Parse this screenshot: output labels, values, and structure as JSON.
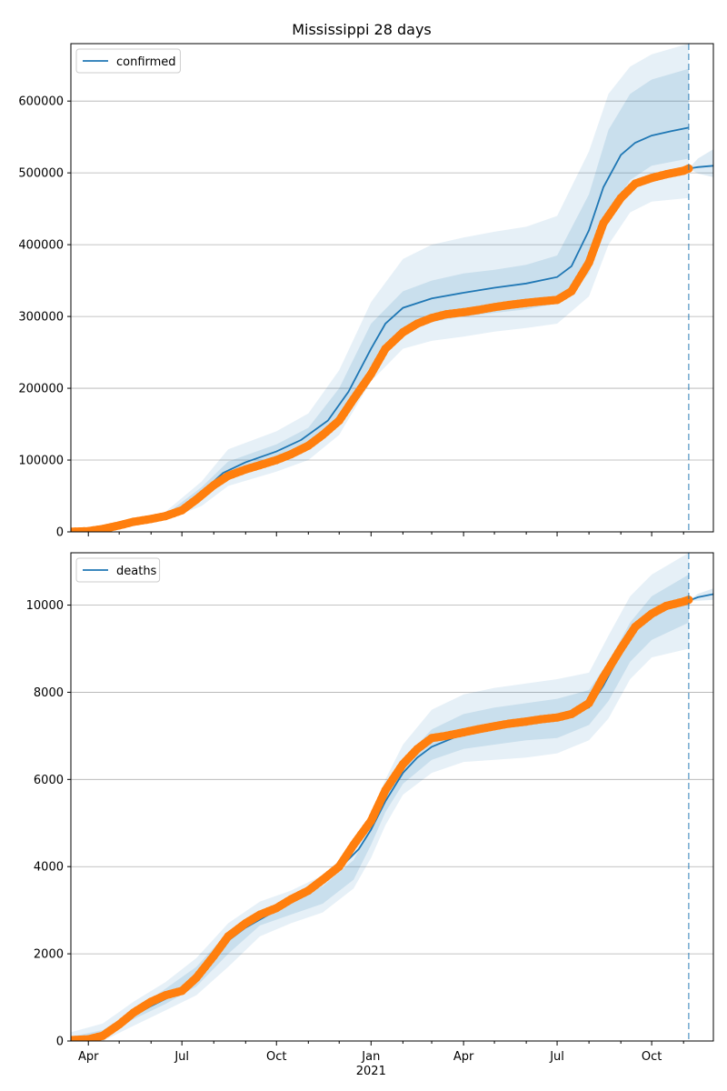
{
  "title": "Mississippi 28 days",
  "colors": {
    "model": "#1f77b4",
    "observed": "#ff7f0e",
    "band": "#1f77b4",
    "grid": "#b0b0b0"
  },
  "x_axis": {
    "start": "2020-03-15",
    "end": "2021-11-30",
    "ticks": [
      {
        "date": "2020-04-01",
        "label": "Apr"
      },
      {
        "date": "2020-07-01",
        "label": "Jul"
      },
      {
        "date": "2020-10-01",
        "label": "Oct"
      },
      {
        "date": "2021-01-01",
        "label": "Jan"
      },
      {
        "date": "2021-04-01",
        "label": "Apr"
      },
      {
        "date": "2021-07-01",
        "label": "Jul"
      },
      {
        "date": "2021-10-01",
        "label": "Oct"
      }
    ],
    "minor_ticks": [
      "2020-05-01",
      "2020-06-01",
      "2020-08-01",
      "2020-09-01",
      "2020-11-01",
      "2020-12-01",
      "2021-02-01",
      "2021-03-01",
      "2021-05-01",
      "2021-06-01",
      "2021-08-01",
      "2021-09-01",
      "2021-11-01"
    ],
    "year_label": "2021",
    "year_label_date": "2021-01-01"
  },
  "vline_date": "2021-11-06",
  "chart_data": [
    {
      "type": "line",
      "name": "confirmed-panel",
      "legend": {
        "label": "confirmed",
        "position": "upper-left"
      },
      "grid": "horizontal",
      "ylim": [
        0,
        680000
      ],
      "yticks": [
        {
          "value": 0,
          "label": "0"
        },
        {
          "value": 100000,
          "label": "100000"
        },
        {
          "value": 200000,
          "label": "200000"
        },
        {
          "value": 300000,
          "label": "300000"
        },
        {
          "value": 400000,
          "label": "400000"
        },
        {
          "value": 500000,
          "label": "500000"
        },
        {
          "value": 600000,
          "label": "600000"
        }
      ],
      "model": {
        "x": [
          "2020-03-15",
          "2020-04-15",
          "2020-05-15",
          "2020-06-15",
          "2020-07-01",
          "2020-07-20",
          "2020-08-10",
          "2020-09-01",
          "2020-10-01",
          "2020-10-25",
          "2020-11-20",
          "2020-12-10",
          "2021-01-01",
          "2021-01-15",
          "2021-02-01",
          "2021-03-01",
          "2021-04-01",
          "2021-05-01",
          "2021-06-01",
          "2021-07-01",
          "2021-07-15",
          "2021-08-01",
          "2021-08-15",
          "2021-09-01",
          "2021-09-15",
          "2021-10-01",
          "2021-10-20",
          "2021-11-06"
        ],
        "y": [
          500,
          5000,
          14000,
          22000,
          32000,
          55000,
          82000,
          97000,
          112000,
          128000,
          155000,
          195000,
          255000,
          290000,
          312000,
          325000,
          333000,
          340000,
          346000,
          355000,
          370000,
          420000,
          480000,
          525000,
          542000,
          552000,
          558000,
          563000
        ]
      },
      "bands": {
        "x": [
          "2020-03-15",
          "2020-05-01",
          "2020-06-15",
          "2020-07-20",
          "2020-08-15",
          "2020-10-01",
          "2020-11-01",
          "2020-12-01",
          "2021-01-01",
          "2021-02-01",
          "2021-03-01",
          "2021-04-01",
          "2021-05-01",
          "2021-06-01",
          "2021-07-01",
          "2021-08-01",
          "2021-08-20",
          "2021-09-10",
          "2021-10-01",
          "2021-11-06"
        ],
        "outer_upper": [
          2000,
          12000,
          28000,
          70000,
          115000,
          140000,
          165000,
          225000,
          320000,
          380000,
          400000,
          410000,
          418000,
          425000,
          440000,
          530000,
          610000,
          648000,
          665000,
          680000
        ],
        "outer_lower": [
          0,
          5000,
          16000,
          36000,
          64000,
          84000,
          100000,
          135000,
          210000,
          255000,
          266000,
          272000,
          279000,
          284000,
          290000,
          328000,
          400000,
          445000,
          460000,
          465000
        ],
        "inner_upper": [
          1500,
          10000,
          24000,
          62000,
          98000,
          122000,
          145000,
          200000,
          290000,
          335000,
          350000,
          360000,
          365000,
          372000,
          385000,
          470000,
          560000,
          610000,
          630000,
          645000
        ],
        "inner_lower": [
          0,
          7000,
          19000,
          45000,
          74000,
          96000,
          115000,
          160000,
          232000,
          283000,
          292000,
          300000,
          305000,
          310000,
          318000,
          360000,
          440000,
          490000,
          510000,
          520000
        ]
      },
      "forecast": {
        "x": [
          "2021-11-06",
          "2021-11-15",
          "2021-11-30"
        ],
        "y": [
          506000,
          508000,
          510000
        ],
        "upper": [
          506000,
          520000,
          533000
        ],
        "lower": [
          506000,
          499000,
          494000
        ]
      },
      "observed": {
        "x": [
          "2020-03-15",
          "2020-04-01",
          "2020-04-15",
          "2020-05-01",
          "2020-05-15",
          "2020-06-01",
          "2020-06-15",
          "2020-07-01",
          "2020-07-15",
          "2020-08-01",
          "2020-08-15",
          "2020-09-01",
          "2020-09-15",
          "2020-10-01",
          "2020-10-15",
          "2020-11-01",
          "2020-11-15",
          "2020-12-01",
          "2020-12-15",
          "2021-01-01",
          "2021-01-15",
          "2021-02-01",
          "2021-02-15",
          "2021-03-01",
          "2021-03-15",
          "2021-04-01",
          "2021-04-15",
          "2021-05-01",
          "2021-05-15",
          "2021-06-01",
          "2021-06-15",
          "2021-07-01",
          "2021-07-15",
          "2021-08-01",
          "2021-08-15",
          "2021-09-01",
          "2021-09-15",
          "2021-10-01",
          "2021-10-15",
          "2021-11-01",
          "2021-11-06"
        ],
        "y": [
          100,
          1000,
          4000,
          9000,
          14000,
          18000,
          22000,
          30000,
          45000,
          65000,
          78000,
          87000,
          93000,
          100000,
          108000,
          120000,
          135000,
          155000,
          185000,
          220000,
          255000,
          278000,
          290000,
          298000,
          303000,
          306000,
          309000,
          313000,
          316000,
          319000,
          321000,
          323000,
          335000,
          375000,
          430000,
          465000,
          485000,
          493000,
          498000,
          503000,
          506000
        ]
      }
    },
    {
      "type": "line",
      "name": "deaths-panel",
      "legend": {
        "label": "deaths",
        "position": "upper-left"
      },
      "grid": "horizontal",
      "ylim": [
        0,
        11200
      ],
      "yticks": [
        {
          "value": 0,
          "label": "0"
        },
        {
          "value": 2000,
          "label": "2000"
        },
        {
          "value": 4000,
          "label": "4000"
        },
        {
          "value": 6000,
          "label": "6000"
        },
        {
          "value": 8000,
          "label": "8000"
        },
        {
          "value": 10000,
          "label": "10000"
        }
      ],
      "model": {
        "x": [
          "2020-03-15",
          "2020-04-01",
          "2020-04-15",
          "2020-05-01",
          "2020-06-01",
          "2020-07-01",
          "2020-07-15",
          "2020-08-01",
          "2020-08-15",
          "2020-09-01",
          "2020-10-01",
          "2020-11-01",
          "2020-12-01",
          "2020-12-20",
          "2021-01-01",
          "2021-01-15",
          "2021-02-01",
          "2021-02-15",
          "2021-03-01",
          "2021-04-01",
          "2021-05-01",
          "2021-06-01",
          "2021-07-01",
          "2021-08-01",
          "2021-08-15",
          "2021-09-01",
          "2021-09-15",
          "2021-10-01",
          "2021-10-20",
          "2021-11-06"
        ],
        "y": [
          20,
          30,
          150,
          400,
          800,
          1150,
          1450,
          1900,
          2300,
          2600,
          3000,
          3400,
          3950,
          4400,
          4850,
          5500,
          6150,
          6500,
          6750,
          7050,
          7200,
          7320,
          7420,
          7650,
          8150,
          8900,
          9450,
          9800,
          10000,
          10100
        ]
      },
      "bands": {
        "x": [
          "2020-03-15",
          "2020-04-15",
          "2020-05-15",
          "2020-06-15",
          "2020-07-15",
          "2020-08-15",
          "2020-09-15",
          "2020-10-15",
          "2020-11-15",
          "2020-12-15",
          "2021-01-01",
          "2021-01-15",
          "2021-02-01",
          "2021-03-01",
          "2021-04-01",
          "2021-05-01",
          "2021-06-01",
          "2021-07-01",
          "2021-08-01",
          "2021-08-20",
          "2021-09-10",
          "2021-10-01",
          "2021-11-06"
        ],
        "outer_upper": [
          200,
          400,
          900,
          1350,
          1900,
          2700,
          3200,
          3450,
          3800,
          4450,
          5200,
          6000,
          6800,
          7600,
          7950,
          8100,
          8200,
          8300,
          8450,
          9300,
          10200,
          10700,
          11200
        ],
        "outer_lower": [
          0,
          0,
          350,
          700,
          1050,
          1700,
          2400,
          2700,
          2950,
          3500,
          4200,
          4950,
          5650,
          6150,
          6400,
          6450,
          6500,
          6600,
          6900,
          7400,
          8300,
          8800,
          9000
        ],
        "inner_upper": [
          100,
          250,
          700,
          1200,
          1700,
          2500,
          3000,
          3250,
          3550,
          4150,
          4900,
          5650,
          6450,
          7150,
          7500,
          7650,
          7750,
          7850,
          8050,
          8700,
          9600,
          10200,
          10700
        ],
        "inner_lower": [
          0,
          50,
          500,
          850,
          1250,
          2000,
          2650,
          2900,
          3150,
          3700,
          4500,
          5250,
          5900,
          6450,
          6700,
          6800,
          6900,
          6950,
          7250,
          7800,
          8700,
          9200,
          9600
        ]
      },
      "forecast": {
        "x": [
          "2021-11-06",
          "2021-11-15",
          "2021-11-30"
        ],
        "y": [
          10100,
          10180,
          10250
        ],
        "upper": [
          10100,
          10260,
          10380
        ],
        "lower": [
          10100,
          10100,
          10120
        ]
      },
      "observed": {
        "x": [
          "2020-03-15",
          "2020-04-01",
          "2020-04-15",
          "2020-05-01",
          "2020-05-15",
          "2020-06-01",
          "2020-06-15",
          "2020-07-01",
          "2020-07-15",
          "2020-08-01",
          "2020-08-15",
          "2020-09-01",
          "2020-09-15",
          "2020-10-01",
          "2020-10-15",
          "2020-11-01",
          "2020-11-15",
          "2020-12-01",
          "2020-12-15",
          "2021-01-01",
          "2021-01-15",
          "2021-02-01",
          "2021-02-15",
          "2021-03-01",
          "2021-03-15",
          "2021-04-01",
          "2021-04-15",
          "2021-05-01",
          "2021-05-15",
          "2021-06-01",
          "2021-06-15",
          "2021-07-01",
          "2021-07-15",
          "2021-08-01",
          "2021-08-15",
          "2021-09-01",
          "2021-09-15",
          "2021-10-01",
          "2021-10-15",
          "2021-11-01",
          "2021-11-06"
        ],
        "y": [
          20,
          40,
          120,
          380,
          650,
          900,
          1050,
          1150,
          1450,
          1950,
          2400,
          2700,
          2900,
          3050,
          3250,
          3450,
          3700,
          4000,
          4500,
          5050,
          5750,
          6350,
          6700,
          6950,
          7000,
          7080,
          7150,
          7220,
          7280,
          7330,
          7380,
          7420,
          7500,
          7750,
          8350,
          9000,
          9500,
          9800,
          9980,
          10080,
          10120
        ]
      }
    }
  ]
}
